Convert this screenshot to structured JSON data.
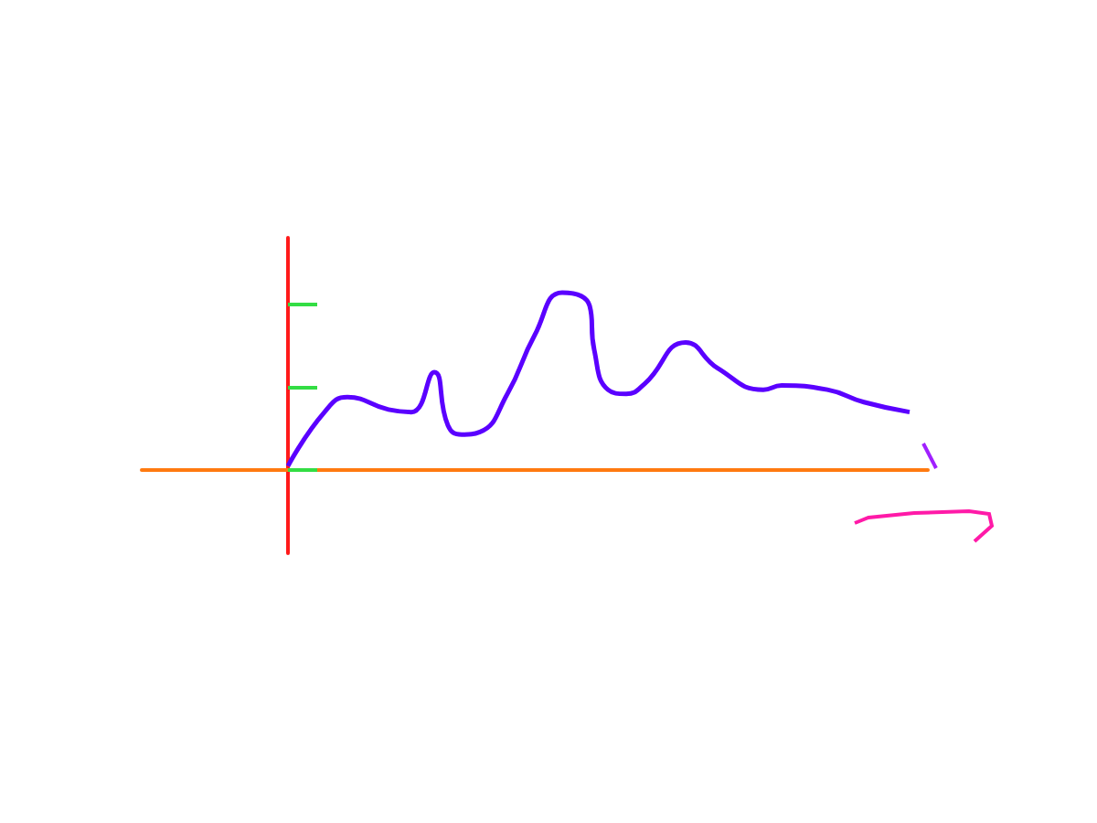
{
  "chart_data": {
    "type": "line",
    "x": [
      0,
      4,
      6.5,
      11,
      13.5,
      16,
      17.5,
      19,
      21,
      24,
      27,
      30,
      33,
      33.5,
      35,
      37,
      39,
      43.5,
      47,
      52,
      54,
      59,
      63,
      68
    ],
    "values": [
      0.5,
      7,
      8.8,
      7.3,
      7,
      11.8,
      5.4,
      4.3,
      4.6,
      9.2,
      16.3,
      21.4,
      19.8,
      14.5,
      9.7,
      9.2,
      10.4,
      15.4,
      12.3,
      9.7,
      10.2,
      9.7,
      8.2,
      7
    ],
    "color": "#5a00ff",
    "xlim": [
      -16,
      70
    ],
    "ylim": [
      -10,
      28
    ],
    "yticks": [
      0,
      10,
      20
    ],
    "tick_labels": "y",
    "grid": false
  }
}
